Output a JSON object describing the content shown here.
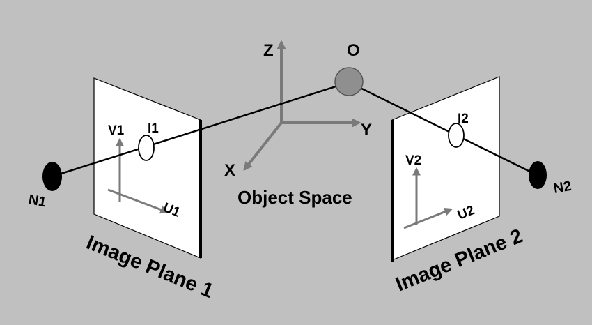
{
  "diagram": {
    "object_point_label": "O",
    "object_space_label": "Object Space",
    "axes": {
      "x": "X",
      "y": "Y",
      "z": "Z"
    },
    "cameras": [
      {
        "node_label": "N1",
        "image_point_label": "I1",
        "u_label": "U1",
        "v_label": "V1",
        "plane_label": "Image Plane 1"
      },
      {
        "node_label": "N2",
        "image_point_label": "I2",
        "u_label": "U2",
        "v_label": "V2",
        "plane_label": "Image Plane 2"
      }
    ],
    "colors": {
      "background": "#c0c0c0",
      "axis_gray": "#7a7a7a",
      "object_point_fill": "#8f8f8f",
      "plane_fill": "#ffffff",
      "ray": "#000000"
    }
  }
}
